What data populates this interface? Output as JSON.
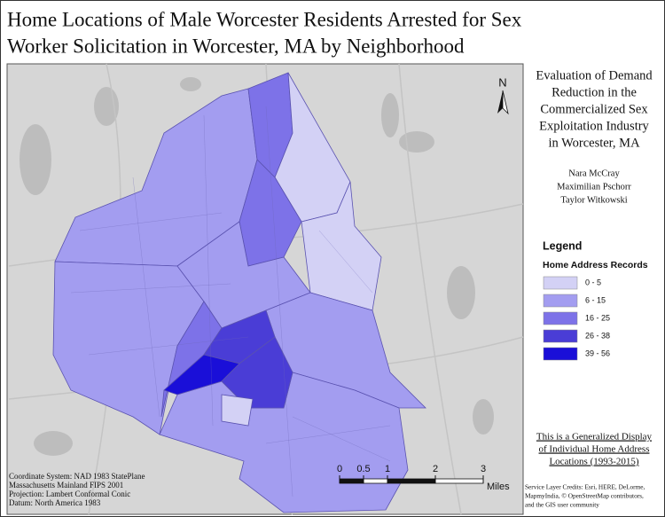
{
  "title_lines": [
    "Home Locations of Male Worcester Residents Arrested for Sex",
    "Worker Solicitation in Worcester, MA by Neighborhood"
  ],
  "north_label": "N",
  "subtitle_lines": [
    "Evaluation of Demand",
    "Reduction in the",
    "Commercialized Sex",
    "Exploitation Industry",
    "in Worcester, MA"
  ],
  "authors": [
    "Nara McCray",
    "Maximilian Pschorr",
    "Taylor Witkowski"
  ],
  "legend": {
    "title": "Legend",
    "subtitle": "Home Address Records",
    "classes": [
      {
        "label": "0 - 5",
        "color": "#d3d1f5"
      },
      {
        "label": "6 - 15",
        "color": "#a39df0"
      },
      {
        "label": "16 - 25",
        "color": "#7d72e8"
      },
      {
        "label": "26 - 38",
        "color": "#4a3dd6"
      },
      {
        "label": "39 - 56",
        "color": "#1a0fd8"
      }
    ]
  },
  "note_lines": [
    "This is a Generalized Display",
    "of Individual Home Address",
    "Locations (1993-2015)"
  ],
  "credit_lines": [
    "Service Layer Credits: Esri, HERE, DeLorme,",
    "MapmyIndia, © OpenStreetMap contributors,",
    "and the GIS user community"
  ],
  "projection_lines": [
    "Coordinate System: NAD 1983 StatePlane",
    "Massachusetts Mainland FIPS 2001",
    "Projection: Lambert Conformal Conic",
    "Datum: North America 1983"
  ],
  "scale_bar": {
    "ticks": [
      0,
      0.5,
      1,
      2,
      3
    ],
    "unit": "Miles"
  }
}
